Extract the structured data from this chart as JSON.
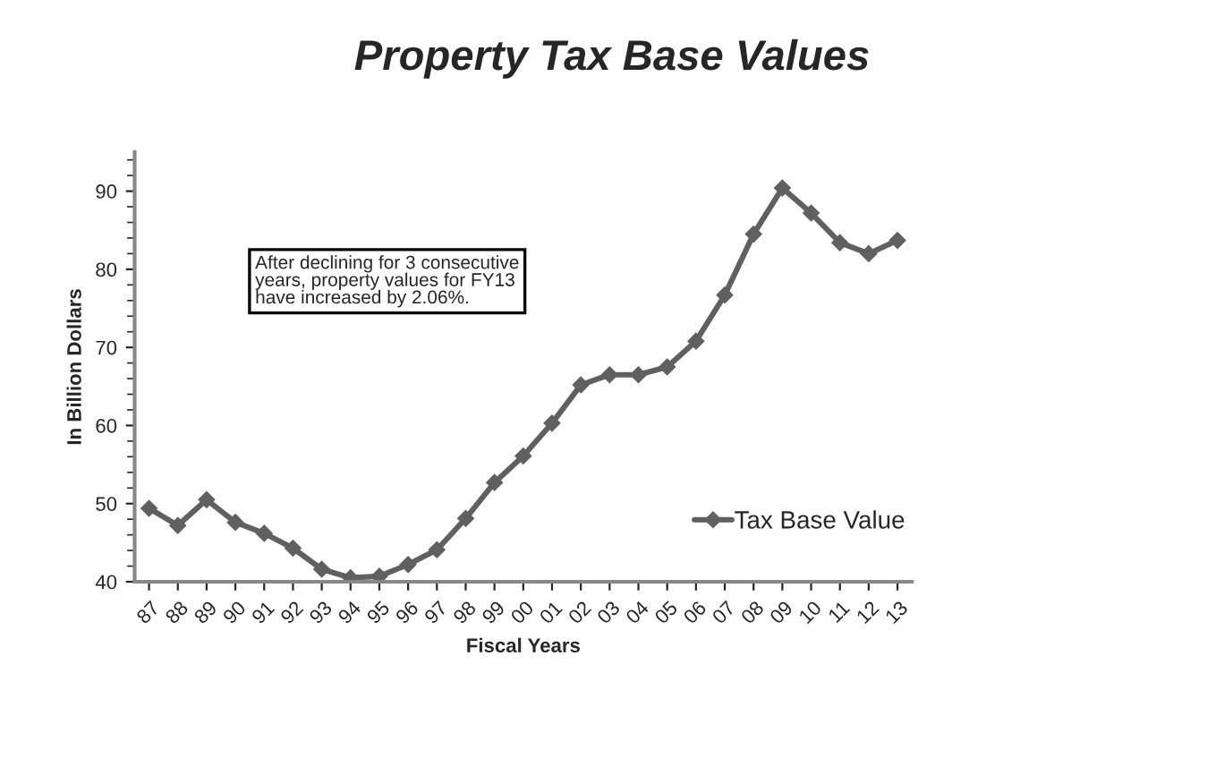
{
  "chart_data": {
    "type": "line",
    "title": "Property Tax Base Values",
    "xlabel": "Fiscal Years",
    "ylabel": "In Billion Dollars",
    "categories": [
      "87",
      "88",
      "89",
      "90",
      "91",
      "92",
      "93",
      "94",
      "95",
      "96",
      "97",
      "98",
      "99",
      "00",
      "01",
      "02",
      "03",
      "04",
      "05",
      "06",
      "07",
      "08",
      "09",
      "10",
      "11",
      "12",
      "13"
    ],
    "series": [
      {
        "name": "Tax Base Value",
        "color": "#606060",
        "values": [
          49.4,
          47.2,
          50.5,
          47.6,
          46.2,
          44.3,
          41.6,
          40.5,
          40.7,
          42.2,
          44.1,
          48.1,
          52.7,
          56.1,
          60.3,
          65.2,
          66.5,
          66.5,
          67.5,
          70.8,
          76.7,
          84.5,
          90.4,
          87.2,
          83.4,
          82.0,
          83.7
        ]
      }
    ],
    "ylim": [
      40,
      95
    ],
    "yticks": [
      40,
      50,
      60,
      70,
      80,
      90
    ],
    "annotations": [
      "After declining for 3 consecutive\nyears, property values for FY13\nhave increased by 2.06%."
    ],
    "grid": false,
    "legend": "bottom right",
    "marker": "diamond",
    "line_style": "solid"
  }
}
